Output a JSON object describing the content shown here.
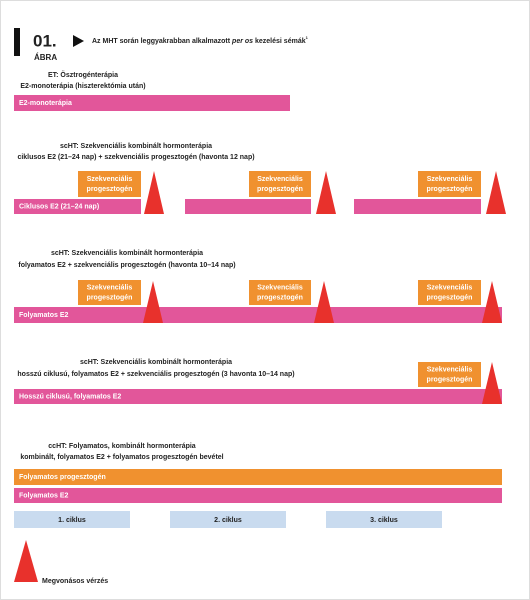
{
  "header": {
    "number": "01.",
    "label": "ÁBRA",
    "title_before": "Az MHT során leggyakrabban alkalmazott ",
    "title_italic": "per os",
    "title_after": " kezelési sémák",
    "title_note": "1"
  },
  "sections": [
    {
      "heading": [
        "ET: Ösztrogénterápia",
        "E2-monoterápia (hiszterektómia után)"
      ],
      "bar_label": "E2-monoterápia"
    },
    {
      "heading": [
        "scHT: Szekvenciális kombinált hormonterápia",
        "ciklusos E2 (21–24 nap) + szekvenciális progesztogén (havonta 12 nap)"
      ],
      "box": [
        "Szekvenciális",
        "progesztogén"
      ],
      "bar_label": "Ciklusos E2 (21–24 nap)"
    },
    {
      "heading": [
        "scHT: Szekvenciális kombinált hormonterápia",
        "folyamatos E2 + szekvenciális progesztogén (havonta 10–14 nap)"
      ],
      "box": [
        "Szekvenciális",
        "progesztogén"
      ],
      "bar_label": "Folyamatos E2"
    },
    {
      "heading": [
        "scHT: Szekvenciális kombinált hormonterápia",
        "hosszú ciklusú, folyamatos E2 + szekvenciális progesztogén (3 havonta 10–14 nap)"
      ],
      "box": [
        "Szekvenciális",
        "progesztogén"
      ],
      "bar_label": "Hosszú ciklusú, folyamatos E2"
    },
    {
      "heading": [
        "ccHT: Folyamatos, kombinált hormonterápia",
        "kombinált, folyamatos E2 + folyamatos progesztogén bevétel"
      ],
      "orange_label": "Folyamatos progesztogén",
      "bar_label": "Folyamatos E2",
      "cycles": [
        "1. ciklus",
        "2. ciklus",
        "3. ciklus"
      ]
    }
  ],
  "legend": "Megvonásos vérzés"
}
